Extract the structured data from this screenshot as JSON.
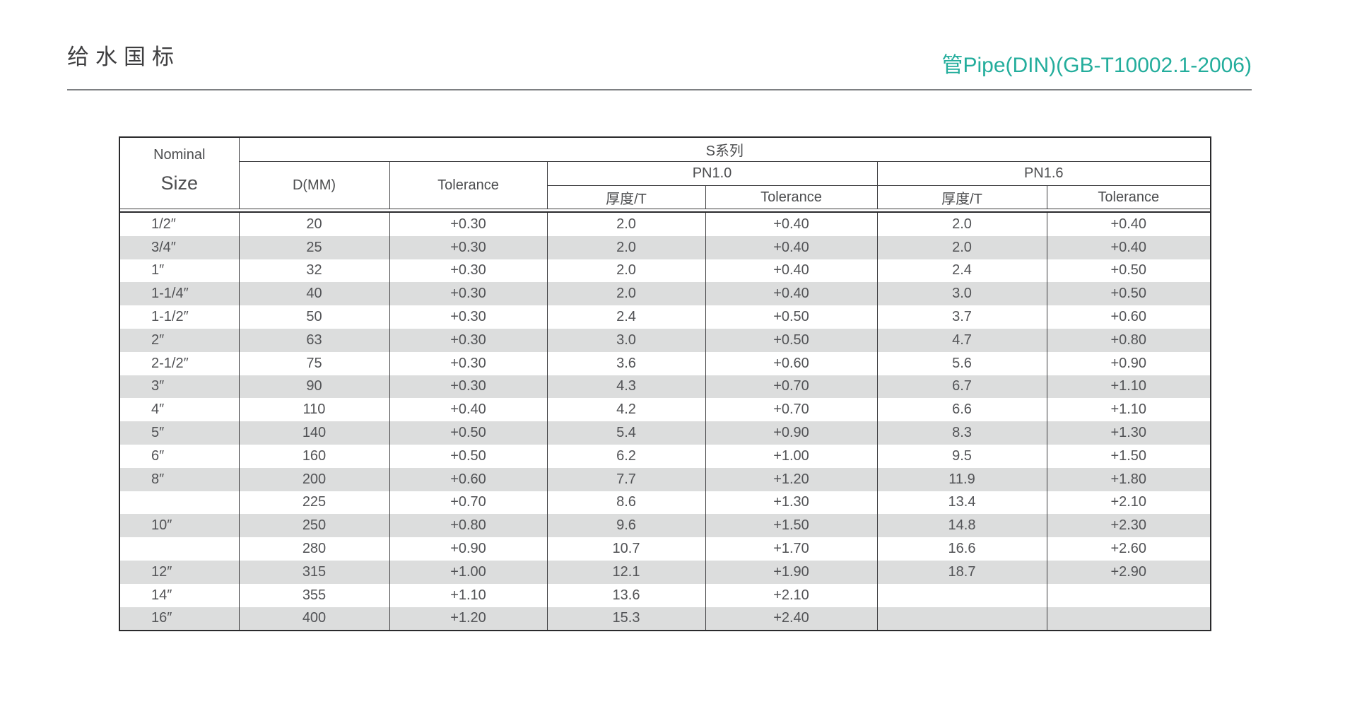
{
  "page": {
    "title_left": "给水国标",
    "title_right": "管Pipe(DIN)(GB-T10002.1-2006)"
  },
  "colors": {
    "accent_teal": "#23ad9c",
    "series_band_blue": "#8dd4f0",
    "row_stripe_gray": "#dcdddd"
  },
  "table": {
    "nominal_line1": "Nominal",
    "nominal_line2": "Size",
    "series_header": "S系列",
    "col_d_mm": "D(MM)",
    "col_tolerance": "Tolerance",
    "col_pn10": "PN1.0",
    "col_pn16": "PN1.6",
    "col_pn10_thickness": "厚度/T",
    "col_pn10_tolerance": "Tolerance",
    "col_pn16_thickness": "厚度/T",
    "col_pn16_tolerance": "Tolerance",
    "rows": [
      [
        "1/2″",
        "20",
        "+0.30",
        "2.0",
        "+0.40",
        "2.0",
        "+0.40"
      ],
      [
        "3/4″",
        "25",
        "+0.30",
        "2.0",
        "+0.40",
        "2.0",
        "+0.40"
      ],
      [
        "1″",
        "32",
        "+0.30",
        "2.0",
        "+0.40",
        "2.4",
        "+0.50"
      ],
      [
        "1-1/4″",
        "40",
        "+0.30",
        "2.0",
        "+0.40",
        "3.0",
        "+0.50"
      ],
      [
        "1-1/2″",
        "50",
        "+0.30",
        "2.4",
        "+0.50",
        "3.7",
        "+0.60"
      ],
      [
        "2″",
        "63",
        "+0.30",
        "3.0",
        "+0.50",
        "4.7",
        "+0.80"
      ],
      [
        "2-1/2″",
        "75",
        "+0.30",
        "3.6",
        "+0.60",
        "5.6",
        "+0.90"
      ],
      [
        "3″",
        "90",
        "+0.30",
        "4.3",
        "+0.70",
        "6.7",
        "+1.10"
      ],
      [
        "4″",
        "110",
        "+0.40",
        "4.2",
        "+0.70",
        "6.6",
        "+1.10"
      ],
      [
        "5″",
        "140",
        "+0.50",
        "5.4",
        "+0.90",
        "8.3",
        "+1.30"
      ],
      [
        "6″",
        "160",
        "+0.50",
        "6.2",
        "+1.00",
        "9.5",
        "+1.50"
      ],
      [
        "8″",
        "200",
        "+0.60",
        "7.7",
        "+1.20",
        "11.9",
        "+1.80"
      ],
      [
        "",
        "225",
        "+0.70",
        "8.6",
        "+1.30",
        "13.4",
        "+2.10"
      ],
      [
        "10″",
        "250",
        "+0.80",
        "9.6",
        "+1.50",
        "14.8",
        "+2.30"
      ],
      [
        "",
        "280",
        "+0.90",
        "10.7",
        "+1.70",
        "16.6",
        "+2.60"
      ],
      [
        "12″",
        "315",
        "+1.00",
        "12.1",
        "+1.90",
        "18.7",
        "+2.90"
      ],
      [
        "14″",
        "355",
        "+1.10",
        "13.6",
        "+2.10",
        "",
        ""
      ],
      [
        "16″",
        "400",
        "+1.20",
        "15.3",
        "+2.40",
        "",
        ""
      ]
    ]
  }
}
